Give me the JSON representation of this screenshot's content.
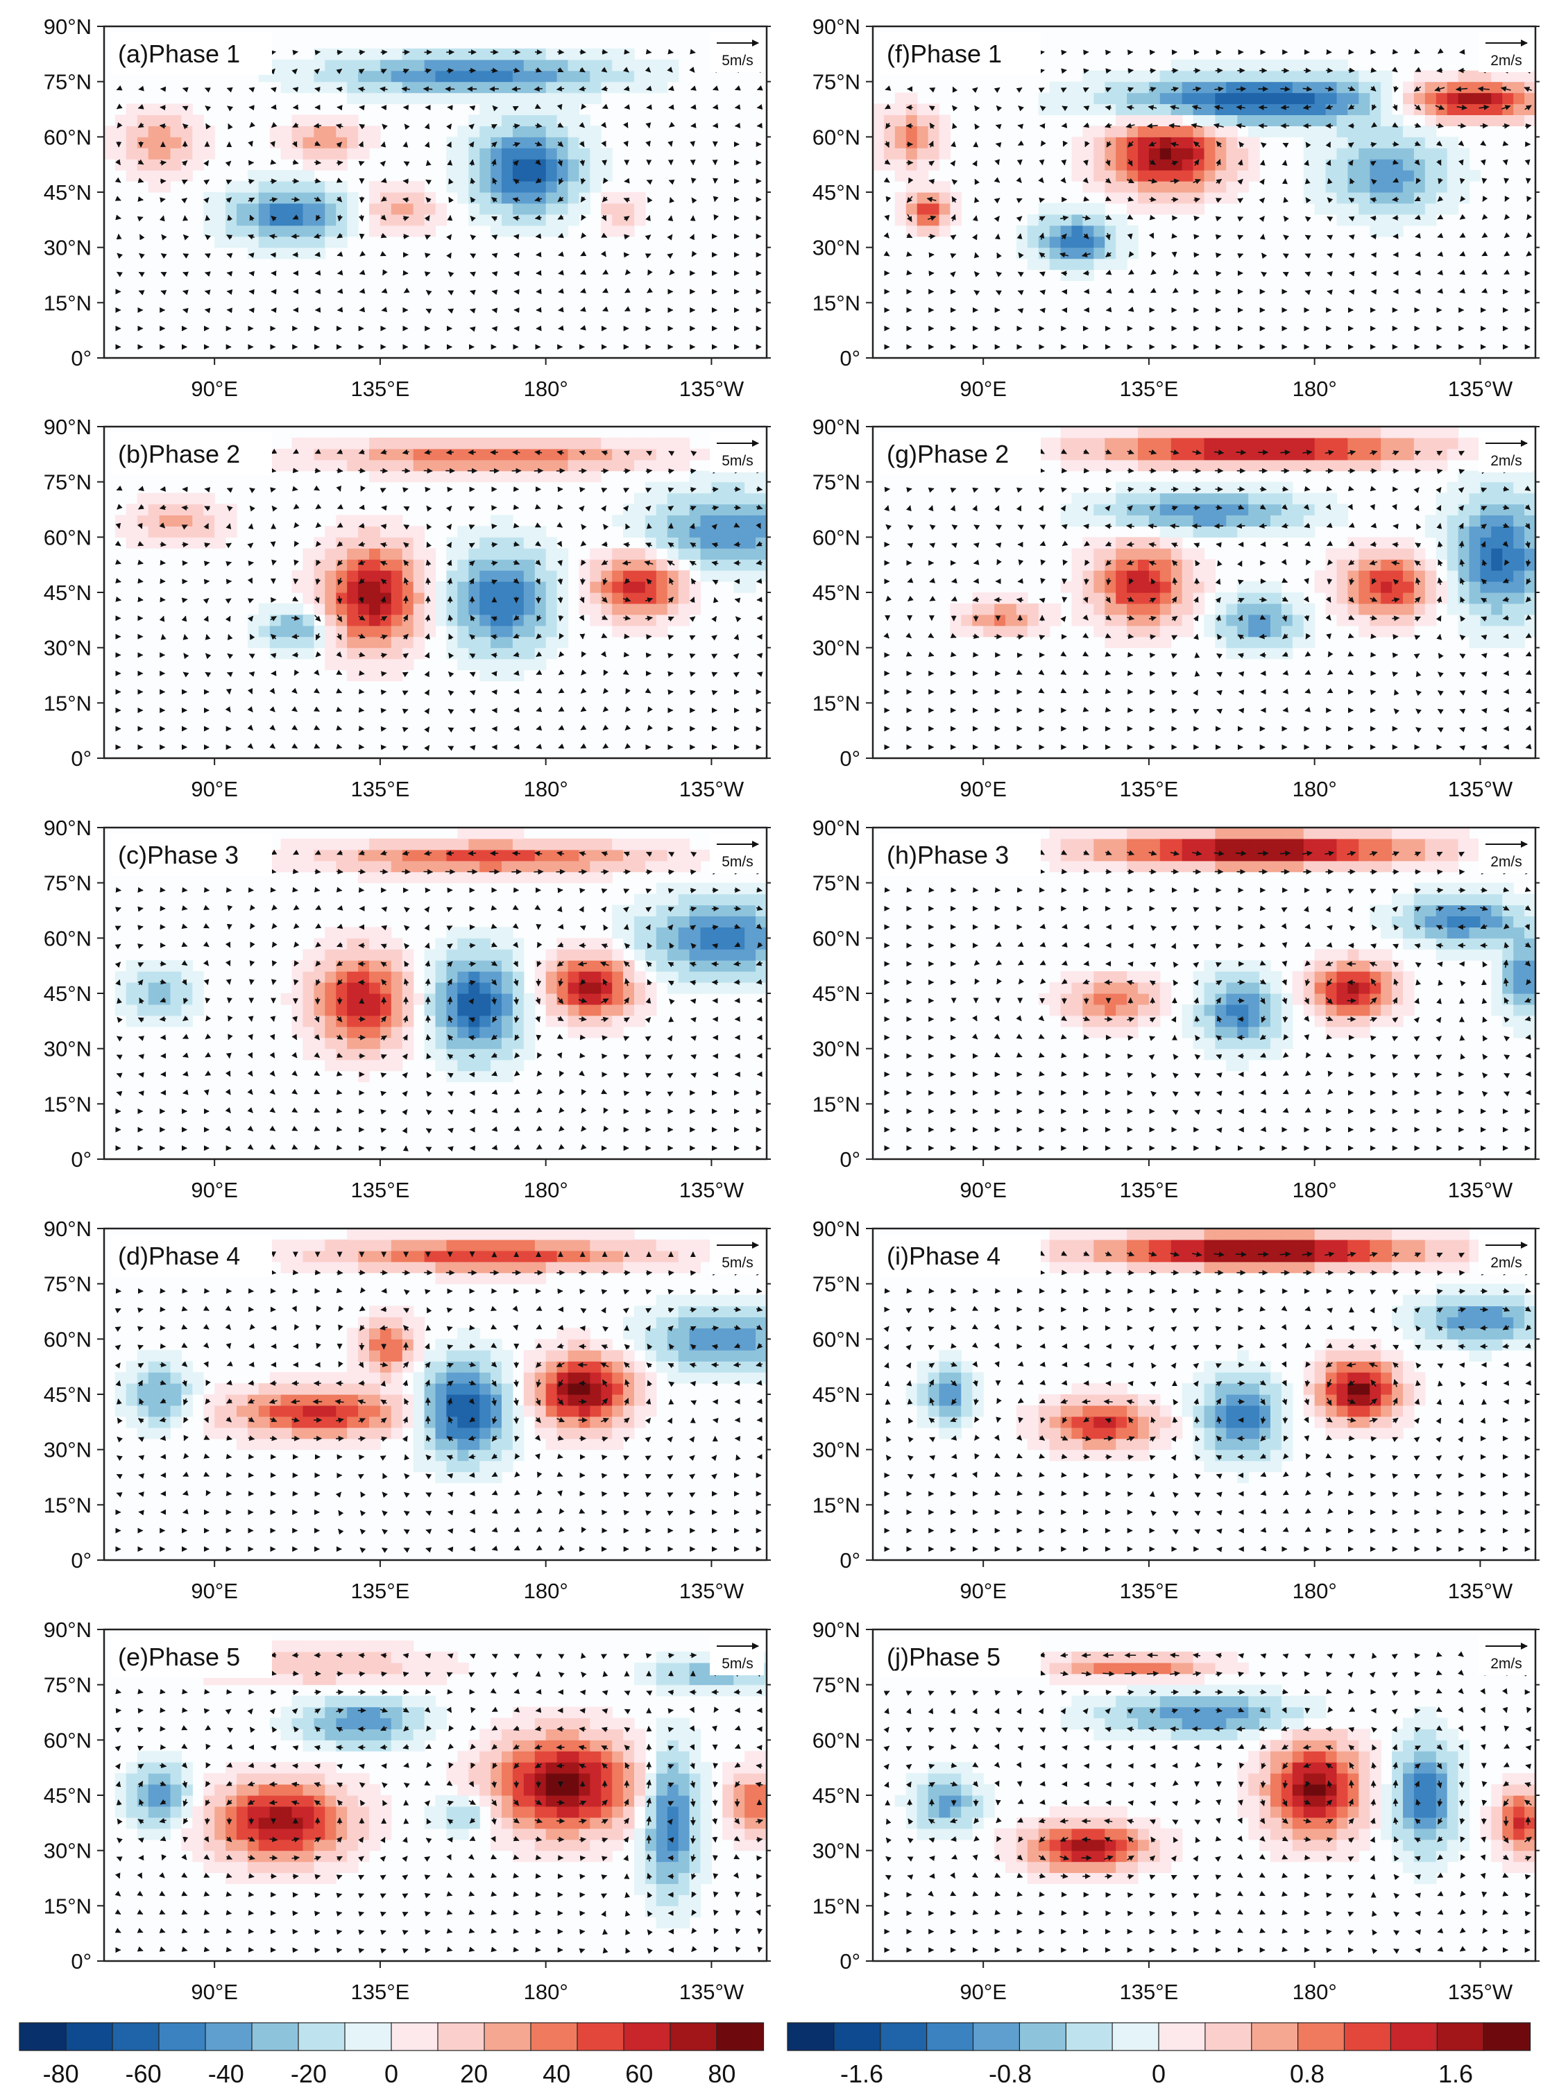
{
  "chart_data": {
    "type": "heatmap",
    "description_note": "Ten map panels of anomalies with wind-vector overlay",
    "latitude_ticks": [
      "0°",
      "15°N",
      "30°N",
      "45°N",
      "60°N",
      "75°N",
      "90°N"
    ],
    "longitude_ticks": [
      "90°E",
      "135°E",
      "180°",
      "135°W"
    ],
    "lat_range": [
      0,
      90
    ],
    "lon_range": [
      60,
      240
    ],
    "columns": [
      {
        "reference_vector": "5m/s",
        "colorbar_labels": [
          "-80",
          "-60",
          "-40",
          "-20",
          "0",
          "20",
          "40",
          "60",
          "80"
        ],
        "colorbar_range": [
          -90,
          90
        ],
        "panels": [
          {
            "label": "(a)Phase 1",
            "centers": [
              {
                "lon": 110,
                "lat": 39,
                "value": -50,
                "rx": 15,
                "ry": 7
              },
              {
                "lon": 175,
                "lat": 51,
                "value": -65,
                "rx": 13,
                "ry": 11
              },
              {
                "lon": 160,
                "lat": 77,
                "value": -50,
                "rx": 35,
                "ry": 5
              },
              {
                "lon": 75,
                "lat": 58,
                "value": 30,
                "rx": 10,
                "ry": 8
              },
              {
                "lon": 120,
                "lat": 59,
                "value": 30,
                "rx": 10,
                "ry": 5
              },
              {
                "lon": 140,
                "lat": 40,
                "value": 25,
                "rx": 10,
                "ry": 6
              },
              {
                "lon": 200,
                "lat": 40,
                "value": 20,
                "rx": 6,
                "ry": 5
              }
            ]
          },
          {
            "label": "(b)Phase 2",
            "centers": [
              {
                "lon": 133,
                "lat": 44,
                "value": 75,
                "rx": 12,
                "ry": 13
              },
              {
                "lon": 168,
                "lat": 43,
                "value": -55,
                "rx": 13,
                "ry": 13
              },
              {
                "lon": 205,
                "lat": 47,
                "value": 60,
                "rx": 12,
                "ry": 8
              },
              {
                "lon": 112,
                "lat": 35,
                "value": -35,
                "rx": 9,
                "ry": 5
              },
              {
                "lon": 230,
                "lat": 62,
                "value": -45,
                "rx": 20,
                "ry": 10
              },
              {
                "lon": 165,
                "lat": 82,
                "value": 45,
                "rx": 40,
                "ry": 4
              },
              {
                "lon": 80,
                "lat": 64,
                "value": 25,
                "rx": 12,
                "ry": 6
              }
            ]
          },
          {
            "label": "(c)Phase 3",
            "centers": [
              {
                "lon": 130,
                "lat": 43,
                "value": 65,
                "rx": 12,
                "ry": 12
              },
              {
                "lon": 161,
                "lat": 42,
                "value": -65,
                "rx": 11,
                "ry": 13
              },
              {
                "lon": 192,
                "lat": 47,
                "value": 70,
                "rx": 11,
                "ry": 8
              },
              {
                "lon": 228,
                "lat": 60,
                "value": -50,
                "rx": 20,
                "ry": 10
              },
              {
                "lon": 165,
                "lat": 82,
                "value": 50,
                "rx": 40,
                "ry": 4
              },
              {
                "lon": 75,
                "lat": 45,
                "value": -30,
                "rx": 8,
                "ry": 7
              }
            ]
          },
          {
            "label": "(d)Phase 4",
            "centers": [
              {
                "lon": 118,
                "lat": 40,
                "value": 60,
                "rx": 22,
                "ry": 6
              },
              {
                "lon": 137,
                "lat": 58,
                "value": 45,
                "rx": 7,
                "ry": 7
              },
              {
                "lon": 158,
                "lat": 41,
                "value": -70,
                "rx": 11,
                "ry": 12
              },
              {
                "lon": 190,
                "lat": 46,
                "value": 85,
                "rx": 12,
                "ry": 9
              },
              {
                "lon": 228,
                "lat": 60,
                "value": -45,
                "rx": 18,
                "ry": 8
              },
              {
                "lon": 165,
                "lat": 83,
                "value": 55,
                "rx": 40,
                "ry": 4
              },
              {
                "lon": 75,
                "lat": 45,
                "value": -35,
                "rx": 8,
                "ry": 8
              }
            ]
          },
          {
            "label": "(e)Phase 5",
            "centers": [
              {
                "lon": 108,
                "lat": 38,
                "value": 75,
                "rx": 17,
                "ry": 10
              },
              {
                "lon": 185,
                "lat": 48,
                "value": 85,
                "rx": 18,
                "ry": 12
              },
              {
                "lon": 214,
                "lat": 38,
                "value": -55,
                "rx": 7,
                "ry": 18
              },
              {
                "lon": 237,
                "lat": 43,
                "value": 45,
                "rx": 7,
                "ry": 8
              },
              {
                "lon": 130,
                "lat": 65,
                "value": -45,
                "rx": 15,
                "ry": 6
              },
              {
                "lon": 75,
                "lat": 45,
                "value": -40,
                "rx": 8,
                "ry": 8
              },
              {
                "lon": 158,
                "lat": 40,
                "value": -25,
                "rx": 8,
                "ry": 5
              },
              {
                "lon": 225,
                "lat": 78,
                "value": -30,
                "rx": 15,
                "ry": 4
              },
              {
                "lon": 120,
                "lat": 80,
                "value": 20,
                "rx": 30,
                "ry": 5
              }
            ]
          }
        ]
      },
      {
        "reference_vector": "2m/s",
        "colorbar_labels": [
          "-1.6",
          "-0.8",
          "0",
          "0.8",
          "1.6"
        ],
        "colorbar_range": [
          -2.0,
          2.0
        ],
        "panels": [
          {
            "label": "(f)Phase 1",
            "centers": [
              {
                "lon": 140,
                "lat": 55,
                "value": 1.8,
                "rx": 15,
                "ry": 9
              },
              {
                "lon": 165,
                "lat": 70,
                "value": -1.5,
                "rx": 35,
                "ry": 6
              },
              {
                "lon": 222,
                "lat": 70,
                "value": 1.7,
                "rx": 18,
                "ry": 5
              },
              {
                "lon": 115,
                "lat": 32,
                "value": -1.2,
                "rx": 10,
                "ry": 6
              },
              {
                "lon": 75,
                "lat": 40,
                "value": 1.1,
                "rx": 6,
                "ry": 5
              },
              {
                "lon": 200,
                "lat": 50,
                "value": -0.9,
                "rx": 15,
                "ry": 10
              },
              {
                "lon": 70,
                "lat": 60,
                "value": 0.8,
                "rx": 8,
                "ry": 7
              }
            ]
          },
          {
            "label": "(g)Phase 2",
            "centers": [
              {
                "lon": 165,
                "lat": 84,
                "value": 1.7,
                "rx": 40,
                "ry": 4
              },
              {
                "lon": 133,
                "lat": 47,
                "value": 1.4,
                "rx": 12,
                "ry": 10
              },
              {
                "lon": 200,
                "lat": 47,
                "value": 1.3,
                "rx": 12,
                "ry": 8
              },
              {
                "lon": 165,
                "lat": 37,
                "value": -0.9,
                "rx": 10,
                "ry": 7
              },
              {
                "lon": 230,
                "lat": 55,
                "value": -1.3,
                "rx": 12,
                "ry": 15
              },
              {
                "lon": 150,
                "lat": 67,
                "value": -1.0,
                "rx": 25,
                "ry": 5
              },
              {
                "lon": 95,
                "lat": 38,
                "value": 0.8,
                "rx": 10,
                "ry": 4
              }
            ]
          },
          {
            "label": "(h)Phase 3",
            "centers": [
              {
                "lon": 165,
                "lat": 84,
                "value": 1.9,
                "rx": 40,
                "ry": 4
              },
              {
                "lon": 190,
                "lat": 46,
                "value": 1.6,
                "rx": 10,
                "ry": 7
              },
              {
                "lon": 160,
                "lat": 40,
                "value": -1.1,
                "rx": 10,
                "ry": 9
              },
              {
                "lon": 125,
                "lat": 43,
                "value": 0.9,
                "rx": 12,
                "ry": 6
              },
              {
                "lon": 220,
                "lat": 65,
                "value": -1.1,
                "rx": 15,
                "ry": 6
              },
              {
                "lon": 237,
                "lat": 50,
                "value": -1.0,
                "rx": 6,
                "ry": 10
              }
            ]
          },
          {
            "label": "(i)Phase 4",
            "centers": [
              {
                "lon": 165,
                "lat": 84,
                "value": 2.0,
                "rx": 40,
                "ry": 4
              },
              {
                "lon": 192,
                "lat": 46,
                "value": 1.8,
                "rx": 10,
                "ry": 8
              },
              {
                "lon": 160,
                "lat": 39,
                "value": -1.2,
                "rx": 10,
                "ry": 10
              },
              {
                "lon": 122,
                "lat": 37,
                "value": 1.3,
                "rx": 14,
                "ry": 6
              },
              {
                "lon": 80,
                "lat": 45,
                "value": -1.0,
                "rx": 6,
                "ry": 7
              },
              {
                "lon": 225,
                "lat": 65,
                "value": -1.0,
                "rx": 15,
                "ry": 6
              }
            ]
          },
          {
            "label": "(j)Phase 5",
            "centers": [
              {
                "lon": 180,
                "lat": 47,
                "value": 1.8,
                "rx": 12,
                "ry": 12
              },
              {
                "lon": 118,
                "lat": 31,
                "value": 1.6,
                "rx": 15,
                "ry": 6
              },
              {
                "lon": 210,
                "lat": 45,
                "value": -1.2,
                "rx": 8,
                "ry": 14
              },
              {
                "lon": 236,
                "lat": 38,
                "value": 1.3,
                "rx": 6,
                "ry": 8
              },
              {
                "lon": 150,
                "lat": 67,
                "value": -1.0,
                "rx": 25,
                "ry": 5
              },
              {
                "lon": 80,
                "lat": 43,
                "value": -0.9,
                "rx": 8,
                "ry": 7
              },
              {
                "lon": 130,
                "lat": 80,
                "value": 1.0,
                "rx": 20,
                "ry": 3
              }
            ]
          }
        ]
      }
    ]
  },
  "colors": {
    "scale": [
      "#08306b",
      "#0d4a8f",
      "#1f63a8",
      "#3a82c0",
      "#5f9fcf",
      "#8ec3dc",
      "#bfe3ee",
      "#e4f4f8",
      "#fde8ec",
      "#fbd0cc",
      "#f5a792",
      "#ef7a5e",
      "#e3473b",
      "#c8262a",
      "#a21519",
      "#6e0a0e"
    ]
  }
}
